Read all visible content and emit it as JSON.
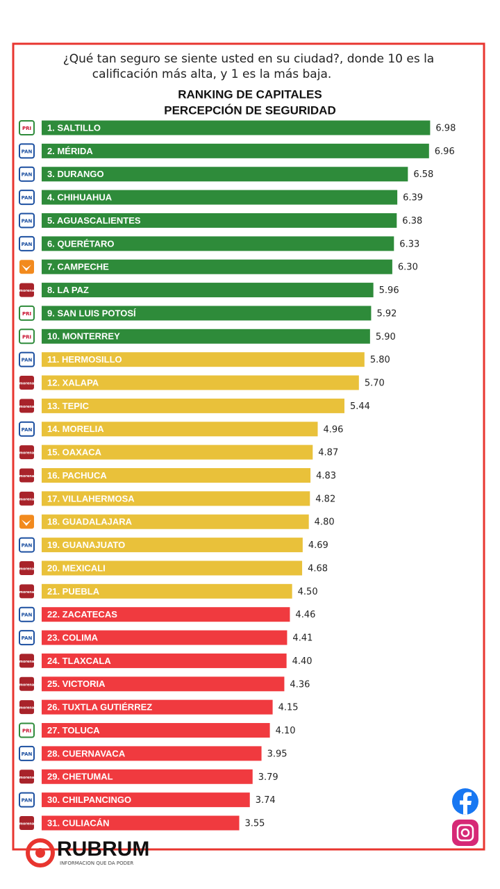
{
  "chart_data": {
    "type": "bar",
    "orientation": "horizontal",
    "question": [
      "¿Qué tan seguro se siente usted en su ciudad?, donde 10 es la",
      "calificación más alta, y  1 es la más baja."
    ],
    "title": "RANKING DE CAPITALES",
    "subtitle": "PERCEPCIÓN DE SEGURIDAD",
    "categories": [
      "1. SALTILLO",
      "2. MÉRIDA",
      "3. DURANGO",
      "4. CHIHUAHUA",
      "5. AGUASCALIENTES",
      "6. QUERÉTARO",
      "7. CAMPECHE",
      "8. LA PAZ",
      "9. SAN LUIS POTOSÍ",
      "10. MONTERREY",
      "11. HERMOSILLO",
      "12. XALAPA",
      "13. TEPIC",
      "14. MORELIA",
      "15. OAXACA",
      "16. PACHUCA",
      "17. VILLAHERMOSA",
      "18. GUADALAJARA",
      "19. GUANAJUATO",
      "20. MEXICALI",
      "21. PUEBLA",
      "22. ZACATECAS",
      "23. COLIMA",
      "24. TLAXCALA",
      "25. VICTORIA",
      "26. TUXTLA GUTIÉRREZ",
      "27. TOLUCA",
      "28. CUERNAVACA",
      "29. CHETUMAL",
      "30. CHILPANCINGO",
      "31. CULIACÁN"
    ],
    "values": [
      6.98,
      6.96,
      6.58,
      6.39,
      6.38,
      6.33,
      6.3,
      5.96,
      5.92,
      5.9,
      5.8,
      5.7,
      5.44,
      4.96,
      4.87,
      4.83,
      4.82,
      4.8,
      4.69,
      4.68,
      4.5,
      4.46,
      4.41,
      4.4,
      4.36,
      4.15,
      4.1,
      3.95,
      3.79,
      3.74,
      3.55
    ],
    "value_labels": [
      "6.98",
      "6.96",
      "6.58",
      "6.39",
      "6.38",
      "6.33",
      "6.30",
      "5.96",
      "5.92",
      "5.90",
      "5.80",
      "5.70",
      "5.44",
      "4.96",
      "4.87",
      "4.83",
      "4.82",
      "4.80",
      "4.69",
      "4.68",
      "4.50",
      "4.46",
      "4.41",
      "4.40",
      "4.36",
      "4.15",
      "4.10",
      "3.95",
      "3.79",
      "3.74",
      "3.55"
    ],
    "logos": [
      "PRI",
      "PAN",
      "PAN",
      "PAN",
      "PAN",
      "PAN",
      null,
      "morena",
      "PRI",
      "PRI",
      "PAN",
      "morena",
      "morena",
      "PAN",
      "morena",
      "morena",
      "morena",
      null,
      "PAN",
      "morena",
      "morena",
      "PAN",
      "PAN",
      "morena",
      "morena",
      "morena",
      "PRI",
      "PAN",
      "morena",
      "PAN",
      "morena"
    ],
    "colors": [
      "#2e8b3a",
      "#2e8b3a",
      "#2e8b3a",
      "#2e8b3a",
      "#2e8b3a",
      "#2e8b3a",
      "#2e8b3a",
      "#2e8b3a",
      "#2e8b3a",
      "#2e8b3a",
      "#e9c13a",
      "#e9c13a",
      "#e9c13a",
      "#e9c13a",
      "#e9c13a",
      "#e9c13a",
      "#e9c13a",
      "#e9c13a",
      "#e9c13a",
      "#e9c13a",
      "#e9c13a",
      "#f03a3f",
      "#f03a3f",
      "#f03a3f",
      "#f03a3f",
      "#f03a3f",
      "#f03a3f",
      "#f03a3f",
      "#f03a3f",
      "#f03a3f",
      "#f03a3f"
    ],
    "xlim": [
      0,
      7
    ]
  },
  "brand": {
    "name": "RUBRUM",
    "tagline": "INFORMACION QUE DA PODER"
  }
}
